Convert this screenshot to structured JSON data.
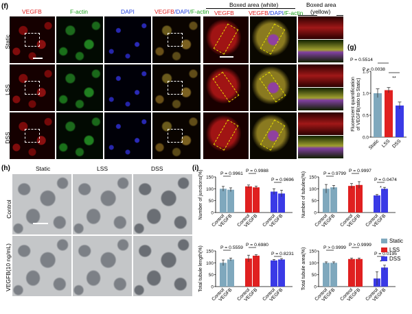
{
  "panel_f": {
    "label": "(f)",
    "headers": {
      "vegfb": "VEGFB",
      "factin": "F-actin",
      "dapi": "DAPI",
      "merge_vegfb": "VEGFB",
      "merge_slash1": "/",
      "merge_dapi": "DAPI",
      "merge_slash2": "/",
      "merge_factin": "F-actin",
      "zoom_vegfb": "VEGFB",
      "zoom_merge_vegfb": "VEGFB",
      "zoom_merge_slash1": "/",
      "zoom_merge_dapi": "DAPI",
      "zoom_merge_slash2": "/",
      "zoom_merge_factin": "F-actin",
      "boxed_white": "Boxed area (white)",
      "boxed_yellow_1": "Boxed area",
      "boxed_yellow_2": "(yellow)"
    },
    "rows": [
      "Static",
      "LSS",
      "DSS"
    ]
  },
  "panel_g": {
    "label": "(g)",
    "chart_data": {
      "type": "bar",
      "categories": [
        "Static",
        "LSS",
        "DSS"
      ],
      "values": [
        1.0,
        1.07,
        0.72
      ],
      "errors": [
        0.1,
        0.06,
        0.08
      ],
      "colors": [
        "#7fa8bd",
        "#e02020",
        "#3a3ae6"
      ],
      "ylabel_1": "Fluorescent quantification",
      "ylabel_2": "of VEGFB(ratio to Static)",
      "ylim": [
        0.0,
        1.5
      ],
      "yticks": [
        "0.0",
        "0.5",
        "1.0",
        "1.5"
      ],
      "annotations": [
        "P = 0.5514",
        "P = 0.0038"
      ],
      "stars": "**"
    }
  },
  "panel_h": {
    "label": "(h)",
    "cols": [
      "Static",
      "LSS",
      "DSS"
    ],
    "rows": [
      "Control",
      "VEGFB(10 ng/mL)"
    ]
  },
  "panel_i": {
    "label": "(i)",
    "legend": [
      {
        "name": "Static",
        "color": "#7fa8bd"
      },
      {
        "name": "LSS",
        "color": "#e02020"
      },
      {
        "name": "DSS",
        "color": "#3a3ae6"
      }
    ],
    "chart_data": [
      {
        "type": "bar",
        "ylabel": "Number of junctions(%)",
        "ylim": [
          0,
          150
        ],
        "yticks": [
          "0",
          "50",
          "100",
          "150"
        ],
        "categories": [
          "Control",
          "VEGFB",
          "Control",
          "VEGFB",
          "Control",
          "VEGFB"
        ],
        "values": [
          100,
          96,
          110,
          106,
          88,
          80
        ],
        "errors": [
          10,
          8,
          6,
          5,
          12,
          14
        ],
        "annotations": [
          "P = 0.9961",
          "P = 0.9988",
          "P = 0.9696"
        ],
        "stars": ""
      },
      {
        "type": "bar",
        "ylabel": "Number of tubules(%)",
        "ylim": [
          0,
          150
        ],
        "yticks": [
          "0",
          "50",
          "100",
          "150"
        ],
        "categories": [
          "Control",
          "VEGFB",
          "Control",
          "VEGFB",
          "Control",
          "VEGFB"
        ],
        "values": [
          100,
          106,
          112,
          116,
          72,
          100
        ],
        "errors": [
          18,
          8,
          10,
          14,
          4,
          6
        ],
        "annotations": [
          "P = 0.9799",
          "P = 0.9997",
          "P = 0.0474"
        ],
        "stars": "*"
      },
      {
        "type": "bar",
        "ylabel": "Total tubule length(%)",
        "ylim": [
          0,
          150
        ],
        "yticks": [
          "0",
          "50",
          "100",
          "150"
        ],
        "categories": [
          "Control",
          "VEGFB",
          "Control",
          "VEGFB",
          "Control",
          "VEGFB"
        ],
        "values": [
          100,
          114,
          118,
          130,
          110,
          114
        ],
        "errors": [
          12,
          6,
          14,
          4,
          4,
          4
        ],
        "annotations": [
          "P = 0.5559",
          "P = 0.6980",
          "P = 0.8231"
        ],
        "stars": ""
      },
      {
        "type": "bar",
        "ylabel": "Total tubule area(%)",
        "ylim": [
          0,
          150
        ],
        "yticks": [
          "0",
          "50",
          "100",
          "150"
        ],
        "categories": [
          "Control",
          "VEGFB",
          "Control",
          "VEGFB",
          "Control",
          "VEGFB"
        ],
        "values": [
          100,
          100,
          116,
          116,
          34,
          80
        ],
        "errors": [
          4,
          4,
          4,
          4,
          28,
          10
        ],
        "annotations": [
          "P > 0.9999",
          "P > 0.9999",
          "P = 0.0195"
        ],
        "stars": "*"
      }
    ]
  }
}
